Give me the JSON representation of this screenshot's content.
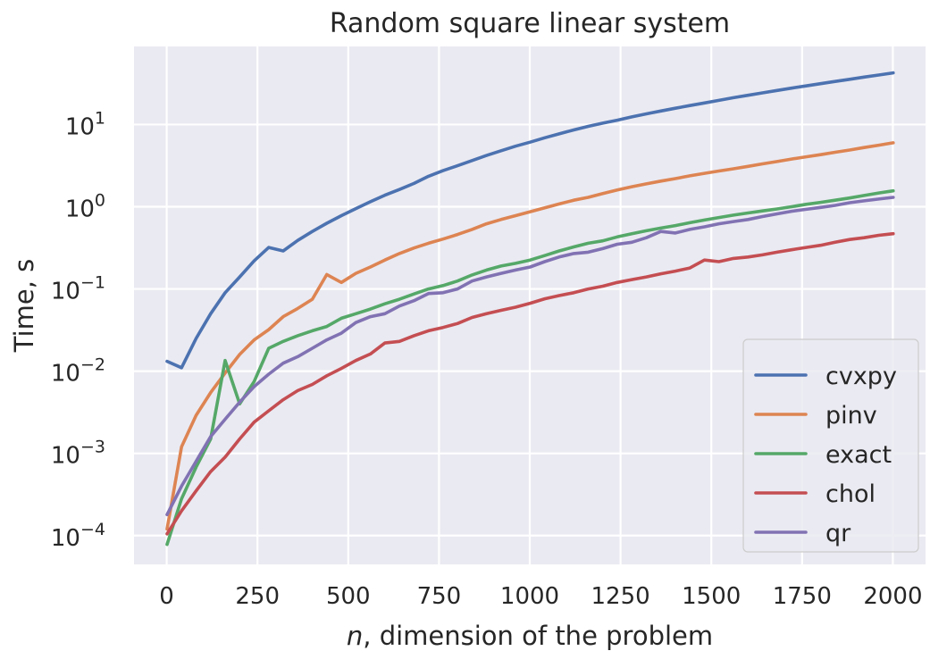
{
  "chart_data": {
    "type": "line",
    "title": "Random square linear system",
    "xlabel_var": "n",
    "xlabel_rest": ", dimension of the problem",
    "ylabel": "Time, s",
    "xlim": [
      -90,
      2090
    ],
    "ylim_log10": [
      -4.35,
      1.95
    ],
    "y_scale": "log",
    "grid": true,
    "legend_position": "lower right",
    "xticks": [
      0,
      250,
      500,
      750,
      1000,
      1250,
      1500,
      1750,
      2000
    ],
    "yticks": [
      {
        "base": "10",
        "exp": "1",
        "value": 10
      },
      {
        "base": "10",
        "exp": "0",
        "value": 1
      },
      {
        "base": "10",
        "exp": "−1",
        "value": 0.1
      },
      {
        "base": "10",
        "exp": "−2",
        "value": 0.01
      },
      {
        "base": "10",
        "exp": "−3",
        "value": 0.001
      },
      {
        "base": "10",
        "exp": "−4",
        "value": 0.0001
      }
    ],
    "series": [
      {
        "name": "cvxpy",
        "color": "#4c72b0",
        "x": [
          1,
          41,
          81,
          121,
          161,
          201,
          241,
          281,
          321,
          361,
          401,
          441,
          481,
          521,
          561,
          601,
          641,
          681,
          721,
          761,
          801,
          841,
          881,
          921,
          961,
          1001,
          1041,
          1081,
          1121,
          1161,
          1201,
          1241,
          1281,
          1321,
          1361,
          1401,
          1441,
          1481,
          1521,
          1561,
          1601,
          1641,
          1681,
          1721,
          1761,
          1801,
          1841,
          1881,
          1921,
          1961,
          2001
        ],
        "y": [
          0.0132,
          0.011,
          0.025,
          0.05,
          0.09,
          0.14,
          0.22,
          0.32,
          0.29,
          0.39,
          0.5,
          0.63,
          0.78,
          0.95,
          1.15,
          1.38,
          1.62,
          1.92,
          2.35,
          2.75,
          3.15,
          3.65,
          4.2,
          4.8,
          5.45,
          6.1,
          6.9,
          7.7,
          8.6,
          9.5,
          10.4,
          11.3,
          12.4,
          13.5,
          14.6,
          15.8,
          17.0,
          18.3,
          19.7,
          21.2,
          22.7,
          24.3,
          26.0,
          27.7,
          29.5,
          31.4,
          33.4,
          35.5,
          37.8,
          40.0,
          42.5
        ]
      },
      {
        "name": "pinv",
        "color": "#dd8452",
        "x": [
          1,
          41,
          81,
          121,
          161,
          201,
          241,
          281,
          321,
          361,
          401,
          441,
          481,
          521,
          561,
          601,
          641,
          681,
          721,
          761,
          801,
          841,
          881,
          921,
          961,
          1001,
          1041,
          1081,
          1121,
          1161,
          1201,
          1241,
          1281,
          1321,
          1361,
          1401,
          1441,
          1481,
          1521,
          1561,
          1601,
          1641,
          1681,
          1721,
          1761,
          1801,
          1841,
          1881,
          1921,
          1961,
          2001
        ],
        "y": [
          0.00012,
          0.0012,
          0.0029,
          0.0055,
          0.0095,
          0.016,
          0.024,
          0.032,
          0.046,
          0.058,
          0.075,
          0.15,
          0.12,
          0.155,
          0.185,
          0.225,
          0.27,
          0.315,
          0.36,
          0.405,
          0.46,
          0.53,
          0.62,
          0.7,
          0.78,
          0.87,
          0.97,
          1.08,
          1.2,
          1.3,
          1.45,
          1.6,
          1.75,
          1.9,
          2.05,
          2.2,
          2.38,
          2.55,
          2.72,
          2.9,
          3.1,
          3.32,
          3.55,
          3.8,
          4.05,
          4.3,
          4.6,
          4.9,
          5.25,
          5.6,
          6.0
        ]
      },
      {
        "name": "exact",
        "color": "#55a868",
        "x": [
          1,
          41,
          81,
          121,
          161,
          201,
          241,
          281,
          321,
          361,
          401,
          441,
          481,
          521,
          561,
          601,
          641,
          681,
          721,
          761,
          801,
          841,
          881,
          921,
          961,
          1001,
          1041,
          1081,
          1121,
          1161,
          1201,
          1241,
          1281,
          1321,
          1361,
          1401,
          1441,
          1481,
          1521,
          1561,
          1601,
          1641,
          1681,
          1721,
          1761,
          1801,
          1841,
          1881,
          1921,
          1961,
          2001
        ],
        "y": [
          7.8e-05,
          0.00028,
          0.00068,
          0.0015,
          0.0135,
          0.004,
          0.0075,
          0.019,
          0.023,
          0.027,
          0.031,
          0.035,
          0.044,
          0.05,
          0.057,
          0.066,
          0.075,
          0.087,
          0.1,
          0.11,
          0.125,
          0.148,
          0.17,
          0.19,
          0.205,
          0.225,
          0.255,
          0.29,
          0.325,
          0.36,
          0.385,
          0.43,
          0.47,
          0.51,
          0.55,
          0.59,
          0.64,
          0.69,
          0.74,
          0.79,
          0.84,
          0.89,
          0.94,
          1.0,
          1.07,
          1.13,
          1.2,
          1.28,
          1.37,
          1.47,
          1.56
        ]
      },
      {
        "name": "chol",
        "color": "#c44e52",
        "x": [
          1,
          41,
          81,
          121,
          161,
          201,
          241,
          281,
          321,
          361,
          401,
          441,
          481,
          521,
          561,
          601,
          641,
          681,
          721,
          761,
          801,
          841,
          881,
          921,
          961,
          1001,
          1041,
          1081,
          1121,
          1161,
          1201,
          1241,
          1281,
          1321,
          1361,
          1401,
          1441,
          1481,
          1521,
          1561,
          1601,
          1641,
          1681,
          1721,
          1761,
          1801,
          1841,
          1881,
          1921,
          1961,
          2001
        ],
        "y": [
          0.000105,
          0.0002,
          0.00035,
          0.0006,
          0.0009,
          0.0015,
          0.0024,
          0.0033,
          0.0045,
          0.0058,
          0.0069,
          0.0088,
          0.0108,
          0.0135,
          0.0162,
          0.022,
          0.023,
          0.027,
          0.031,
          0.034,
          0.038,
          0.045,
          0.05,
          0.055,
          0.06,
          0.067,
          0.076,
          0.083,
          0.09,
          0.1,
          0.108,
          0.12,
          0.13,
          0.14,
          0.153,
          0.165,
          0.18,
          0.225,
          0.215,
          0.235,
          0.245,
          0.26,
          0.28,
          0.3,
          0.32,
          0.34,
          0.37,
          0.4,
          0.42,
          0.45,
          0.47
        ]
      },
      {
        "name": "qr",
        "color": "#8172b3",
        "x": [
          1,
          41,
          81,
          121,
          161,
          201,
          241,
          281,
          321,
          361,
          401,
          441,
          481,
          521,
          561,
          601,
          641,
          681,
          721,
          761,
          801,
          841,
          881,
          921,
          961,
          1001,
          1041,
          1081,
          1121,
          1161,
          1201,
          1241,
          1281,
          1321,
          1361,
          1401,
          1441,
          1481,
          1521,
          1561,
          1601,
          1641,
          1681,
          1721,
          1761,
          1801,
          1841,
          1881,
          1921,
          1961,
          2001
        ],
        "y": [
          0.00018,
          0.0004,
          0.0008,
          0.0016,
          0.0026,
          0.0042,
          0.0065,
          0.0092,
          0.0125,
          0.015,
          0.019,
          0.024,
          0.029,
          0.039,
          0.046,
          0.05,
          0.062,
          0.072,
          0.088,
          0.09,
          0.1,
          0.125,
          0.14,
          0.155,
          0.17,
          0.185,
          0.215,
          0.245,
          0.27,
          0.28,
          0.31,
          0.35,
          0.37,
          0.42,
          0.5,
          0.48,
          0.53,
          0.57,
          0.62,
          0.66,
          0.7,
          0.76,
          0.82,
          0.88,
          0.93,
          0.98,
          1.04,
          1.12,
          1.18,
          1.24,
          1.3
        ]
      }
    ]
  }
}
